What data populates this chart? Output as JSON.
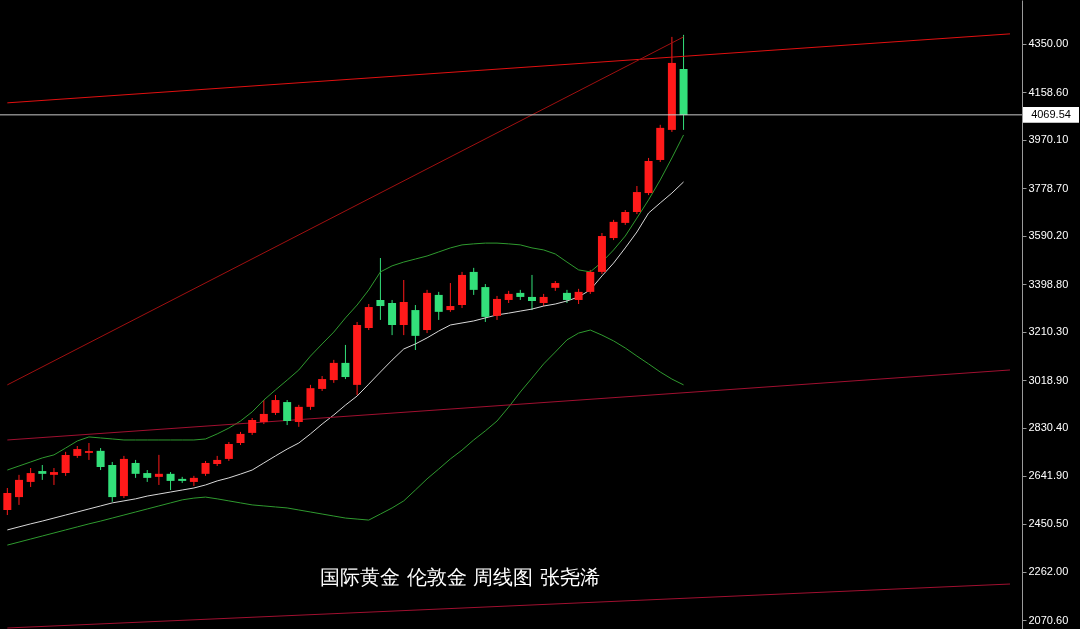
{
  "chart_data": {
    "type": "candlestick",
    "categories": [
      null,
      null,
      null,
      null,
      null,
      null,
      null,
      null,
      null,
      null,
      null,
      null,
      null,
      null,
      null,
      null,
      null,
      null,
      null,
      null,
      null,
      null,
      null,
      null,
      null,
      null,
      null,
      null,
      null,
      null,
      null,
      null,
      null,
      null,
      null,
      null,
      null,
      null,
      null,
      null,
      null,
      null,
      null,
      null,
      null,
      null,
      null,
      null,
      null,
      null,
      null,
      null,
      null,
      null,
      null,
      null,
      null,
      null,
      null,
      null,
      null,
      null,
      null,
      null,
      null,
      null,
      null,
      null,
      null,
      null,
      null,
      null,
      null,
      null,
      null,
      null,
      null,
      null,
      null,
      null,
      null,
      null,
      null,
      null,
      null,
      null,
      null
    ],
    "ohlc": [
      [
        2506,
        2593,
        2486,
        2573
      ],
      [
        2557,
        2645,
        2526,
        2625
      ],
      [
        2617,
        2672,
        2597,
        2652
      ],
      [
        2660,
        2684,
        2625,
        2649
      ],
      [
        2645,
        2672,
        2605,
        2656
      ],
      [
        2652,
        2736,
        2641,
        2724
      ],
      [
        2720,
        2759,
        2712,
        2747
      ],
      [
        2732,
        2771,
        2704,
        2739
      ],
      [
        2740,
        2751,
        2664,
        2676
      ],
      [
        2684,
        2696,
        2538,
        2557
      ],
      [
        2561,
        2720,
        2553,
        2708
      ],
      [
        2692,
        2704,
        2633,
        2649
      ],
      [
        2652,
        2664,
        2617,
        2633
      ],
      [
        2637,
        2724,
        2605,
        2649
      ],
      [
        2649,
        2656,
        2585,
        2621
      ],
      [
        2629,
        2637,
        2613,
        2621
      ],
      [
        2617,
        2641,
        2601,
        2633
      ],
      [
        2649,
        2700,
        2641,
        2692
      ],
      [
        2688,
        2720,
        2680,
        2704
      ],
      [
        2708,
        2775,
        2700,
        2767
      ],
      [
        2771,
        2815,
        2763,
        2807
      ],
      [
        2811,
        2870,
        2803,
        2862
      ],
      [
        2854,
        2941,
        2846,
        2886
      ],
      [
        2890,
        2961,
        2882,
        2941
      ],
      [
        2933,
        2941,
        2842,
        2858
      ],
      [
        2854,
        2922,
        2835,
        2914
      ],
      [
        2914,
        3001,
        2902,
        2988
      ],
      [
        2985,
        3036,
        2977,
        3024
      ],
      [
        3020,
        3100,
        3009,
        3088
      ],
      [
        3088,
        3159,
        3024,
        3032
      ],
      [
        3001,
        3250,
        2961,
        3238
      ],
      [
        3226,
        3321,
        3218,
        3309
      ],
      [
        3337,
        3503,
        3258,
        3313
      ],
      [
        3325,
        3337,
        3198,
        3238
      ],
      [
        3238,
        3416,
        3198,
        3329
      ],
      [
        3297,
        3317,
        3139,
        3195
      ],
      [
        3218,
        3377,
        3206,
        3365
      ],
      [
        3357,
        3369,
        3258,
        3290
      ],
      [
        3297,
        3404,
        3290,
        3313
      ],
      [
        3317,
        3448,
        3305,
        3436
      ],
      [
        3448,
        3464,
        3357,
        3377
      ],
      [
        3388,
        3400,
        3250,
        3270
      ],
      [
        3274,
        3353,
        3258,
        3341
      ],
      [
        3337,
        3373,
        3325,
        3361
      ],
      [
        3365,
        3377,
        3337,
        3349
      ],
      [
        3349,
        3436,
        3297,
        3333
      ],
      [
        3325,
        3361,
        3313,
        3349
      ],
      [
        3385,
        3412,
        3373,
        3404
      ],
      [
        3365,
        3377,
        3325,
        3337
      ],
      [
        3337,
        3381,
        3321,
        3369
      ],
      [
        3369,
        3456,
        3361,
        3448
      ],
      [
        3448,
        3602,
        3440,
        3590
      ],
      [
        3582,
        3654,
        3574,
        3646
      ],
      [
        3642,
        3693,
        3634,
        3685
      ],
      [
        3685,
        3788,
        3677,
        3764
      ],
      [
        3760,
        3899,
        3752,
        3887
      ],
      [
        3891,
        4030,
        3883,
        4018
      ],
      [
        4010,
        4378,
        4002,
        4275
      ],
      [
        4251,
        4386,
        4010,
        4069
      ],
      null,
      null,
      null,
      null,
      null,
      null,
      null,
      null,
      null,
      null,
      null,
      null,
      null,
      null,
      null,
      null,
      null,
      null,
      null,
      null,
      null,
      null,
      null,
      null,
      null,
      null,
      null,
      null
    ],
    "colors": [
      "#ff1a1a",
      "#ff1a1a",
      "#ff1a1a",
      "#33e07a",
      "#ff1a1a",
      "#ff1a1a",
      "#ff1a1a",
      "#ff1a1a",
      "#33e07a",
      "#33e07a",
      "#ff1a1a",
      "#33e07a",
      "#33e07a",
      "#ff1a1a",
      "#33e07a",
      "#33e07a",
      "#ff1a1a",
      "#ff1a1a",
      "#ff1a1a",
      "#ff1a1a",
      "#ff1a1a",
      "#ff1a1a",
      "#ff1a1a",
      "#ff1a1a",
      "#33e07a",
      "#ff1a1a",
      "#ff1a1a",
      "#ff1a1a",
      "#ff1a1a",
      "#33e07a",
      "#ff1a1a",
      "#ff1a1a",
      "#33e07a",
      "#33e07a",
      "#ff1a1a",
      "#33e07a",
      "#ff1a1a",
      "#33e07a",
      "#ff1a1a",
      "#ff1a1a",
      "#33e07a",
      "#33e07a",
      "#ff1a1a",
      "#ff1a1a",
      "#33e07a",
      "#33e07a",
      "#ff1a1a",
      "#ff1a1a",
      "#33e07a",
      "#ff1a1a",
      "#ff1a1a",
      "#ff1a1a",
      "#ff1a1a",
      "#ff1a1a",
      "#ff1a1a",
      "#ff1a1a",
      "#ff1a1a",
      "#ff1a1a",
      "#33e07a",
      null,
      null,
      null,
      null,
      null,
      null,
      null,
      null,
      null,
      null,
      null,
      null,
      null,
      null,
      null,
      null,
      null,
      null,
      null,
      null,
      null,
      null,
      null,
      null,
      null,
      null,
      null,
      null
    ],
    "series": [
      {
        "type": "line",
        "color": "#2f9a2f",
        "values": [
          2664,
          2680,
          2696,
          2712,
          2724,
          2751,
          2779,
          2795,
          2791,
          2787,
          2783,
          2783,
          2783,
          2783,
          2783,
          2783,
          2783,
          2787,
          2807,
          2830,
          2858,
          2894,
          2941,
          2981,
          3020,
          3060,
          3115,
          3163,
          3210,
          3266,
          3317,
          3377,
          3448,
          3472,
          3487,
          3499,
          3511,
          3527,
          3543,
          3555,
          3559,
          3562,
          3562,
          3559,
          3555,
          3543,
          3535,
          3519,
          3487,
          3456,
          3448,
          3487,
          3535,
          3590,
          3661,
          3733,
          3812,
          3899,
          3990,
          null,
          null,
          null,
          null,
          null,
          null,
          null,
          null,
          null,
          null,
          null,
          null,
          null,
          null,
          null,
          null,
          null,
          null,
          null,
          null,
          null,
          null,
          null,
          null,
          null,
          null,
          null,
          null
        ]
      },
      {
        "type": "line",
        "color": "#2f9a2f",
        "values": [
          2367,
          2379,
          2391,
          2403,
          2415,
          2427,
          2439,
          2451,
          2462,
          2474,
          2486,
          2498,
          2510,
          2522,
          2534,
          2546,
          2553,
          2557,
          2550,
          2542,
          2534,
          2526,
          2522,
          2518,
          2514,
          2506,
          2498,
          2490,
          2482,
          2474,
          2470,
          2466,
          2490,
          2514,
          2542,
          2585,
          2629,
          2668,
          2708,
          2743,
          2783,
          2819,
          2858,
          2913,
          2973,
          3028,
          3084,
          3131,
          3179,
          3206,
          3218,
          3198,
          3175,
          3147,
          3115,
          3084,
          3052,
          3024,
          3001,
          null,
          null,
          null,
          null,
          null,
          null,
          null,
          null,
          null,
          null,
          null,
          null,
          null,
          null,
          null,
          null,
          null,
          null,
          null,
          null,
          null,
          null,
          null,
          null,
          null,
          null,
          null,
          null
        ]
      },
      {
        "type": "line",
        "color": "#d8d8d8",
        "values": [
          2427,
          2439,
          2451,
          2462,
          2474,
          2486,
          2498,
          2510,
          2522,
          2534,
          2542,
          2550,
          2561,
          2569,
          2577,
          2585,
          2593,
          2605,
          2621,
          2633,
          2648,
          2664,
          2692,
          2720,
          2747,
          2771,
          2807,
          2846,
          2882,
          2921,
          2957,
          3004,
          3052,
          3099,
          3143,
          3163,
          3187,
          3214,
          3238,
          3246,
          3254,
          3266,
          3278,
          3285,
          3293,
          3301,
          3313,
          3321,
          3333,
          3349,
          3377,
          3432,
          3483,
          3543,
          3606,
          3681,
          3721,
          3760,
          3804,
          null,
          null,
          null,
          null,
          null,
          null,
          null,
          null,
          null,
          null,
          null,
          null,
          null,
          null,
          null,
          null,
          null,
          null,
          null,
          null,
          null,
          null,
          null,
          null,
          null,
          null,
          null,
          null
        ]
      },
      {
        "type": "line",
        "color": "#e01010",
        "values": [
          4117,
          null,
          null,
          null,
          null,
          null,
          null,
          null,
          null,
          null,
          null,
          null,
          null,
          null,
          null,
          null,
          null,
          null,
          null,
          null,
          null,
          null,
          null,
          null,
          null,
          null,
          null,
          null,
          null,
          null,
          null,
          null,
          null,
          null,
          null,
          null,
          null,
          null,
          null,
          null,
          null,
          null,
          null,
          null,
          null,
          null,
          null,
          null,
          null,
          null,
          null,
          null,
          null,
          null,
          null,
          null,
          null,
          null,
          null,
          null,
          null,
          null,
          null,
          null,
          null,
          null,
          null,
          null,
          null,
          null,
          null,
          null,
          null,
          null,
          null,
          null,
          null,
          null,
          null,
          null,
          null,
          null,
          null,
          null,
          null,
          null,
          4390
        ]
      },
      {
        "type": "line",
        "color": "#a01030",
        "values": [
          2783,
          null,
          null,
          null,
          null,
          null,
          null,
          null,
          null,
          null,
          null,
          null,
          null,
          null,
          null,
          null,
          null,
          null,
          null,
          null,
          null,
          null,
          null,
          null,
          null,
          null,
          null,
          null,
          null,
          null,
          null,
          null,
          null,
          null,
          null,
          null,
          null,
          null,
          null,
          null,
          null,
          null,
          null,
          null,
          null,
          null,
          null,
          null,
          null,
          null,
          null,
          null,
          null,
          null,
          null,
          null,
          null,
          null,
          null,
          null,
          null,
          null,
          null,
          null,
          null,
          null,
          null,
          null,
          null,
          null,
          null,
          null,
          null,
          null,
          null,
          null,
          null,
          null,
          null,
          null,
          null,
          null,
          null,
          null,
          null,
          null,
          3060
        ]
      },
      {
        "type": "line",
        "color": "#a01010",
        "values": [
          3001,
          null,
          null,
          null,
          null,
          null,
          null,
          null,
          null,
          null,
          null,
          null,
          null,
          null,
          null,
          null,
          null,
          null,
          null,
          null,
          null,
          null,
          null,
          null,
          null,
          null,
          null,
          null,
          null,
          null,
          null,
          null,
          null,
          null,
          null,
          null,
          null,
          null,
          null,
          null,
          null,
          null,
          null,
          null,
          null,
          null,
          null,
          null,
          null,
          null,
          null,
          null,
          null,
          null,
          null,
          null,
          null,
          null,
          4378,
          null,
          null,
          null,
          null,
          null,
          null,
          null,
          null,
          null,
          null,
          null,
          null,
          null,
          null,
          null,
          null,
          null,
          null,
          null,
          null,
          null,
          null,
          null,
          null,
          null,
          null,
          null,
          null
        ]
      },
      {
        "type": "line",
        "color": "#a01030",
        "values": [
          2039,
          null,
          null,
          null,
          null,
          null,
          null,
          null,
          null,
          null,
          null,
          null,
          null,
          null,
          null,
          null,
          null,
          null,
          null,
          null,
          null,
          null,
          null,
          null,
          null,
          null,
          null,
          null,
          null,
          null,
          null,
          null,
          null,
          null,
          null,
          null,
          null,
          null,
          null,
          null,
          null,
          null,
          null,
          null,
          null,
          null,
          null,
          null,
          null,
          null,
          null,
          null,
          null,
          null,
          null,
          null,
          null,
          null,
          null,
          null,
          null,
          null,
          null,
          null,
          null,
          null,
          null,
          null,
          null,
          null,
          null,
          null,
          null,
          null,
          null,
          null,
          null,
          null,
          null,
          null,
          null,
          null,
          null,
          null,
          null,
          null,
          2213
        ]
      }
    ],
    "ylim": [
      2035,
      4524
    ],
    "yticks": [
      {
        "value": 4350,
        "label": "4350.00"
      },
      {
        "value": 4158.6,
        "label": "4158.60"
      },
      {
        "value": 3970.1,
        "label": "3970.10"
      },
      {
        "value": 3778.7,
        "label": "3778.70"
      },
      {
        "value": 3590.2,
        "label": "3590.20"
      },
      {
        "value": 3398.8,
        "label": "3398.80"
      },
      {
        "value": 3210.3,
        "label": "3210.30"
      },
      {
        "value": 3018.9,
        "label": "3018.90"
      },
      {
        "value": 2830.4,
        "label": "2830.40"
      },
      {
        "value": 2641.9,
        "label": "2641.90"
      },
      {
        "value": 2450.5,
        "label": "2450.50"
      },
      {
        "value": 2262,
        "label": "2262.00"
      },
      {
        "value": 2070.6,
        "label": "2070.60"
      }
    ],
    "ref_lines": [
      {
        "axis": "y",
        "value": 4069.54,
        "label": "4069.54",
        "color": "#c8c8c8"
      }
    ],
    "annotations": [
      "国际黄金 伦敦金 周线图 张尧浠"
    ],
    "grid": false,
    "tick_labels": "y"
  }
}
